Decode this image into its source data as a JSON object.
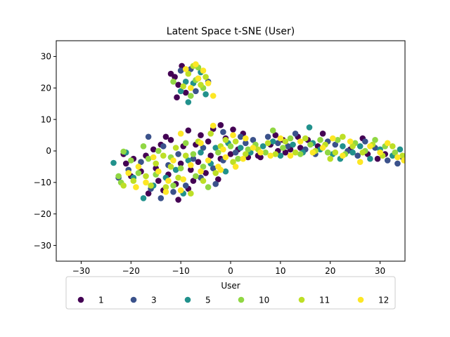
{
  "chart_data": {
    "type": "scatter",
    "title": "Latent Space t-SNE (User)",
    "xlabel": "",
    "ylabel": "",
    "xlim": [
      -35,
      35
    ],
    "ylim": [
      -35,
      35
    ],
    "xticks": [
      -30,
      -20,
      -10,
      0,
      10,
      20,
      30
    ],
    "yticks": [
      -30,
      -20,
      -10,
      0,
      10,
      20,
      30
    ],
    "grid": false,
    "legend": {
      "title": "User",
      "placement": "lower-center",
      "columns": 6
    },
    "series": [
      {
        "name": "1",
        "color": "#440154",
        "points": [
          [
            -9.8,
            27.0
          ],
          [
            -11.2,
            23.5
          ],
          [
            -10.5,
            21.0
          ],
          [
            -12.0,
            24.5
          ],
          [
            -9.0,
            18.5
          ],
          [
            -10.8,
            17.0
          ],
          [
            -8.5,
            6.5
          ],
          [
            -6.0,
            5.0
          ],
          [
            -3.5,
            7.0
          ],
          [
            -2.0,
            8.2
          ],
          [
            0.5,
            6.8
          ],
          [
            2.5,
            5.5
          ],
          [
            -1.0,
            4.0
          ],
          [
            -4.5,
            3.0
          ],
          [
            -7.0,
            2.0
          ],
          [
            -9.5,
            1.5
          ],
          [
            -12.0,
            3.5
          ],
          [
            -14.0,
            2.0
          ],
          [
            -15.5,
            0.5
          ],
          [
            -17.0,
            -1.5
          ],
          [
            -19.5,
            -2.5
          ],
          [
            -21.0,
            -4.0
          ],
          [
            -18.0,
            -6.5
          ],
          [
            -15.0,
            -5.5
          ],
          [
            -12.5,
            -7.5
          ],
          [
            -10.0,
            -4.0
          ],
          [
            -8.0,
            -6.0
          ],
          [
            -6.5,
            -3.5
          ],
          [
            -4.0,
            -1.5
          ],
          [
            -2.0,
            -2.5
          ],
          [
            0.0,
            -1.0
          ],
          [
            1.5,
            0.5
          ],
          [
            3.5,
            -2.0
          ],
          [
            5.5,
            -1.5
          ],
          [
            -11.0,
            -10.5
          ],
          [
            -13.5,
            -12.5
          ],
          [
            -16.5,
            -13.5
          ],
          [
            -10.5,
            -15.5
          ],
          [
            -8.5,
            -12.0
          ],
          [
            -14.5,
            -9.5
          ],
          [
            -20.0,
            -8.0
          ],
          [
            -21.5,
            -1.0
          ],
          [
            -5.0,
            -7.0
          ],
          [
            -2.5,
            -9.0
          ],
          [
            6.0,
            -2.0
          ],
          [
            8.0,
            2.0
          ],
          [
            9.0,
            5.0
          ],
          [
            10.5,
            3.5
          ],
          [
            12.0,
            0.5
          ],
          [
            13.5,
            4.5
          ],
          [
            15.5,
            3.5
          ],
          [
            17.5,
            1.5
          ],
          [
            18.5,
            5.5
          ],
          [
            11.0,
            -0.5
          ],
          [
            26.5,
            4.0
          ],
          [
            27.5,
            -1.0
          ],
          [
            29.5,
            -2.5
          ],
          [
            31.0,
            -1.0
          ],
          [
            9.5,
            0.0
          ],
          [
            14.0,
            1.0
          ],
          [
            24.0,
            0.5
          ],
          [
            -7.5,
            -9.5
          ],
          [
            -13.0,
            4.5
          ]
        ]
      },
      {
        "name": "3",
        "color": "#3b528b",
        "points": [
          [
            -8.0,
            26.0
          ],
          [
            -6.5,
            23.0
          ],
          [
            -4.5,
            22.0
          ],
          [
            -7.0,
            19.0
          ],
          [
            -10.0,
            25.5
          ],
          [
            -16.5,
            4.5
          ],
          [
            -13.5,
            1.5
          ],
          [
            -18.0,
            -3.5
          ],
          [
            -20.5,
            -6.0
          ],
          [
            -22.5,
            -8.5
          ],
          [
            -16.0,
            -12.0
          ],
          [
            -14.0,
            -15.0
          ],
          [
            -11.5,
            -13.0
          ],
          [
            -9.0,
            -11.0
          ],
          [
            -6.0,
            -8.5
          ],
          [
            -3.5,
            -5.5
          ],
          [
            -1.5,
            -3.0
          ],
          [
            1.0,
            -0.5
          ],
          [
            3.0,
            2.5
          ],
          [
            2.0,
            4.5
          ],
          [
            -1.5,
            6.0
          ],
          [
            -5.5,
            1.0
          ],
          [
            -10.5,
            -1.0
          ],
          [
            -12.5,
            -4.5
          ],
          [
            4.5,
            3.5
          ],
          [
            7.5,
            4.5
          ],
          [
            9.5,
            2.5
          ],
          [
            11.5,
            1.5
          ],
          [
            13.0,
            5.5
          ],
          [
            15.0,
            0.5
          ],
          [
            17.0,
            -1.0
          ],
          [
            19.5,
            3.0
          ],
          [
            21.0,
            2.0
          ],
          [
            23.5,
            0.0
          ],
          [
            25.5,
            -1.5
          ],
          [
            27.0,
            3.0
          ],
          [
            29.0,
            1.0
          ],
          [
            31.5,
            -3.0
          ],
          [
            33.5,
            -4.0
          ],
          [
            34.5,
            -2.0
          ],
          [
            -3.0,
            -10.5
          ],
          [
            -7.5,
            -2.5
          ]
        ]
      },
      {
        "name": "5",
        "color": "#21918c",
        "points": [
          [
            -9.0,
            22.0
          ],
          [
            -7.5,
            21.5
          ],
          [
            -8.5,
            15.5
          ],
          [
            -10.0,
            19.0
          ],
          [
            -6.0,
            25.0
          ],
          [
            -5.0,
            18.0
          ],
          [
            -23.5,
            -3.8
          ],
          [
            -21.0,
            -0.5
          ],
          [
            -19.5,
            -8.5
          ],
          [
            -17.5,
            -15.0
          ],
          [
            -15.5,
            -11.0
          ],
          [
            -13.0,
            -8.5
          ],
          [
            -11.0,
            -6.0
          ],
          [
            -8.5,
            -3.0
          ],
          [
            -6.0,
            -0.5
          ],
          [
            -3.0,
            1.0
          ],
          [
            -0.5,
            2.5
          ],
          [
            2.0,
            1.0
          ],
          [
            4.0,
            -0.5
          ],
          [
            6.5,
            1.5
          ],
          [
            8.5,
            3.0
          ],
          [
            10.0,
            -1.5
          ],
          [
            12.5,
            2.0
          ],
          [
            14.5,
            -0.5
          ],
          [
            15.8,
            7.5
          ],
          [
            16.5,
            2.5
          ],
          [
            18.0,
            0.5
          ],
          [
            20.5,
            -1.0
          ],
          [
            22.5,
            1.5
          ],
          [
            22.0,
            -2.5
          ],
          [
            24.5,
            -0.5
          ],
          [
            26.0,
            1.5
          ],
          [
            28.0,
            -2.5
          ],
          [
            30.0,
            0.5
          ],
          [
            32.5,
            -1.5
          ],
          [
            34.0,
            0.5
          ],
          [
            -4.0,
            -4.0
          ],
          [
            -9.5,
            -13.5
          ],
          [
            -1.0,
            -6.5
          ]
        ]
      },
      {
        "name": "10",
        "color": "#90d743",
        "points": [
          [
            -7.0,
            22.5
          ],
          [
            -5.5,
            20.0
          ],
          [
            -8.0,
            17.5
          ],
          [
            -11.5,
            22.0
          ],
          [
            -6.5,
            26.5
          ],
          [
            -21.5,
            -0.2
          ],
          [
            -20.0,
            -3.0
          ],
          [
            -22.5,
            -8.0
          ],
          [
            -22.0,
            -10.0
          ],
          [
            -18.5,
            -7.0
          ],
          [
            -16.5,
            -2.5
          ],
          [
            -14.5,
            0.0
          ],
          [
            -12.0,
            -2.0
          ],
          [
            -10.0,
            -5.5
          ],
          [
            -7.5,
            -1.0
          ],
          [
            -5.5,
            -5.0
          ],
          [
            -2.5,
            -0.5
          ],
          [
            0.0,
            1.5
          ],
          [
            1.5,
            -2.5
          ],
          [
            3.5,
            0.5
          ],
          [
            5.0,
            2.0
          ],
          [
            7.0,
            -0.5
          ],
          [
            8.5,
            6.5
          ],
          [
            10.5,
            1.0
          ],
          [
            12.0,
            4.0
          ],
          [
            14.0,
            -1.0
          ],
          [
            16.0,
            2.0
          ],
          [
            18.0,
            3.5
          ],
          [
            19.5,
            -0.5
          ],
          [
            21.5,
            3.5
          ],
          [
            23.0,
            -1.0
          ],
          [
            25.0,
            2.5
          ],
          [
            27.0,
            0.0
          ],
          [
            29.0,
            3.5
          ],
          [
            31.0,
            1.5
          ],
          [
            33.0,
            -0.5
          ],
          [
            -15.0,
            -7.5
          ],
          [
            -11.5,
            -11.0
          ],
          [
            -7.0,
            -8.0
          ],
          [
            -4.5,
            -11.5
          ],
          [
            -9.0,
            2.5
          ],
          [
            -17.5,
            1.5
          ]
        ]
      },
      {
        "name": "11",
        "color": "#bddf26",
        "points": [
          [
            -8.5,
            24.5
          ],
          [
            -6.0,
            21.0
          ],
          [
            -9.5,
            20.5
          ],
          [
            -7.5,
            27.0
          ],
          [
            -5.0,
            23.5
          ],
          [
            -19.5,
            -9.5
          ],
          [
            -21.5,
            -11.0
          ],
          [
            -17.0,
            -8.0
          ],
          [
            -15.0,
            -4.0
          ],
          [
            -13.5,
            -1.5
          ],
          [
            -11.0,
            1.0
          ],
          [
            -9.0,
            -1.5
          ],
          [
            -6.5,
            3.0
          ],
          [
            -4.0,
            5.5
          ],
          [
            -1.0,
            3.5
          ],
          [
            1.0,
            3.0
          ],
          [
            3.0,
            -1.0
          ],
          [
            5.5,
            0.5
          ],
          [
            7.5,
            2.5
          ],
          [
            9.0,
            -1.0
          ],
          [
            11.0,
            3.0
          ],
          [
            13.0,
            -0.5
          ],
          [
            15.0,
            4.0
          ],
          [
            17.0,
            0.0
          ],
          [
            19.0,
            2.0
          ],
          [
            21.0,
            -0.5
          ],
          [
            22.5,
            4.5
          ],
          [
            24.5,
            1.5
          ],
          [
            26.5,
            -0.5
          ],
          [
            28.5,
            2.0
          ],
          [
            30.5,
            -1.5
          ],
          [
            32.5,
            1.5
          ],
          [
            34.5,
            -1.5
          ],
          [
            -13.0,
            -11.5
          ],
          [
            -10.5,
            -8.5
          ],
          [
            -8.0,
            -13.5
          ],
          [
            -5.5,
            -9.5
          ],
          [
            -3.0,
            -7.0
          ],
          [
            -16.0,
            -11.0
          ],
          [
            -12.0,
            -5.0
          ],
          [
            -2.0,
            1.5
          ],
          [
            0.5,
            -3.5
          ],
          [
            20.0,
            -2.5
          ]
        ]
      },
      {
        "name": "12",
        "color": "#fde725",
        "points": [
          [
            -7.0,
            27.5
          ],
          [
            -5.5,
            25.5
          ],
          [
            -6.5,
            23.0
          ],
          [
            -9.0,
            26.0
          ],
          [
            -4.5,
            21.5
          ],
          [
            -3.5,
            17.5
          ],
          [
            -8.0,
            20.0
          ],
          [
            -18.5,
            -5.0
          ],
          [
            -20.5,
            -7.0
          ],
          [
            -19.0,
            -11.5
          ],
          [
            -17.0,
            -10.0
          ],
          [
            -14.5,
            -6.5
          ],
          [
            -12.5,
            -9.5
          ],
          [
            -10.0,
            -12.5
          ],
          [
            -9.5,
            -9.0
          ],
          [
            -8.0,
            -4.5
          ],
          [
            -6.0,
            -6.5
          ],
          [
            -4.5,
            -3.0
          ],
          [
            -2.5,
            -5.0
          ],
          [
            -1.0,
            -2.0
          ],
          [
            1.0,
            -5.0
          ],
          [
            2.5,
            -2.5
          ],
          [
            -6.0,
            2.5
          ],
          [
            -3.5,
            8.0
          ],
          [
            -1.5,
            0.5
          ],
          [
            0.5,
            5.0
          ],
          [
            3.0,
            4.0
          ],
          [
            4.5,
            1.0
          ],
          [
            6.0,
            -0.5
          ],
          [
            8.0,
            -1.5
          ],
          [
            10.0,
            4.0
          ],
          [
            12.0,
            -1.5
          ],
          [
            14.0,
            3.0
          ],
          [
            16.5,
            -0.5
          ],
          [
            18.5,
            1.0
          ],
          [
            20.5,
            4.0
          ],
          [
            22.5,
            -1.5
          ],
          [
            24.0,
            3.0
          ],
          [
            26.0,
            -3.5
          ],
          [
            28.0,
            1.5
          ],
          [
            30.0,
            -0.5
          ],
          [
            31.5,
            2.5
          ],
          [
            33.5,
            -2.0
          ],
          [
            34.8,
            -3.0
          ],
          [
            -11.5,
            -3.0
          ],
          [
            -15.5,
            -2.0
          ],
          [
            -13.0,
            -13.0
          ],
          [
            -2.0,
            -6.0
          ],
          [
            -10.0,
            5.5
          ]
        ]
      }
    ]
  }
}
